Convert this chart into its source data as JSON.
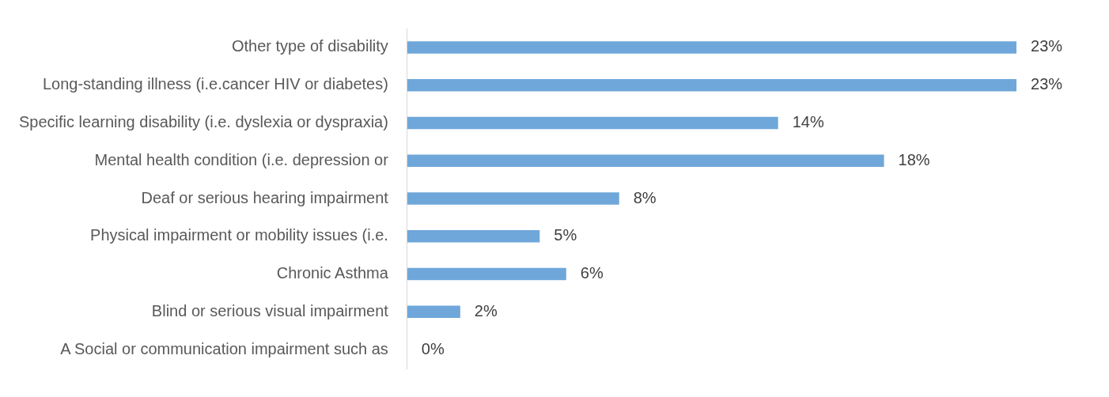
{
  "chart_data": {
    "type": "bar",
    "orientation": "horizontal",
    "categories": [
      "Other type of disability",
      "Long-standing illness (i.e.cancer HIV or diabetes)",
      "Specific learning disability (i.e. dyslexia or dyspraxia)",
      "Mental health condition (i.e. depression or",
      "Deaf or serious hearing impairment",
      "Physical impairment or mobility issues (i.e.",
      "Chronic Asthma",
      "Blind or serious visual impairment",
      "A Social or communication impairment such as"
    ],
    "values": [
      23,
      23,
      14,
      18,
      8,
      5,
      6,
      2,
      0
    ],
    "value_labels": [
      "23%",
      "23%",
      "14%",
      "18%",
      "8%",
      "5%",
      "6%",
      "2%",
      "0%"
    ],
    "color": "#6fa7da",
    "grid": false,
    "legend": false
  }
}
